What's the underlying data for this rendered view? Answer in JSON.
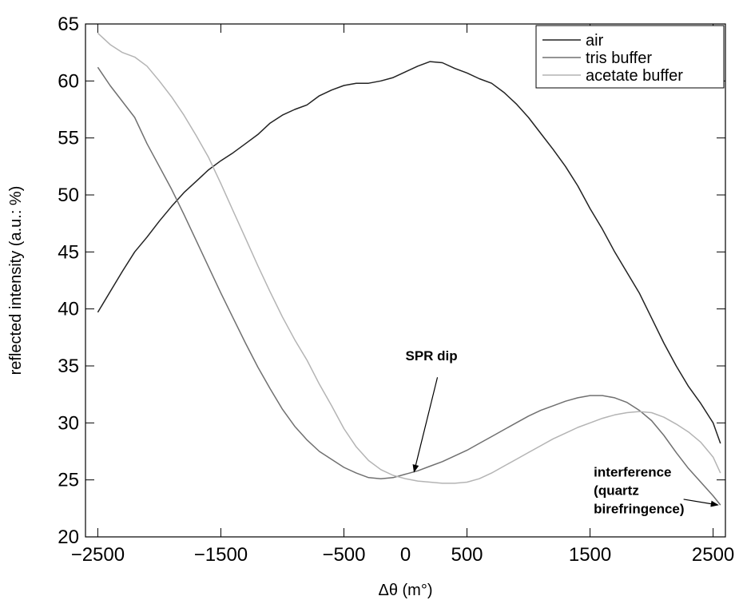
{
  "chart_data": {
    "type": "line",
    "title": "",
    "xlabel": "Δθ (m°)",
    "ylabel": "reflected intensity (a.u.: %)",
    "xlim": [
      -2600,
      2600
    ],
    "ylim": [
      20,
      65
    ],
    "xticks": [
      -2500,
      -1500,
      -500,
      500,
      1500,
      2500
    ],
    "xtick_labels": [
      "−2500",
      "−1500",
      "−500",
      "500",
      "1500",
      "2500"
    ],
    "xtick_labels_extra": [
      {
        "value": 0,
        "label": "0"
      }
    ],
    "yticks": [
      20,
      25,
      30,
      35,
      40,
      45,
      50,
      55,
      60,
      65
    ],
    "ytick_labels": [
      "20",
      "25",
      "30",
      "35",
      "40",
      "45",
      "50",
      "55",
      "60",
      "65"
    ],
    "grid": false,
    "legend_position": "top-right",
    "series": [
      {
        "name": "air",
        "color": "#222222",
        "x": [
          -2500,
          -2400,
          -2300,
          -2200,
          -2100,
          -2000,
          -1900,
          -1800,
          -1700,
          -1600,
          -1500,
          -1400,
          -1300,
          -1200,
          -1100,
          -1000,
          -900,
          -800,
          -700,
          -600,
          -500,
          -400,
          -300,
          -200,
          -100,
          0,
          100,
          200,
          300,
          400,
          500,
          600,
          700,
          800,
          900,
          1000,
          1100,
          1200,
          1300,
          1400,
          1500,
          1600,
          1700,
          1800,
          1900,
          2000,
          2100,
          2200,
          2300,
          2400,
          2500,
          2560
        ],
        "y": [
          39.7,
          41.5,
          43.3,
          45.0,
          46.3,
          47.7,
          49.0,
          50.2,
          51.2,
          52.2,
          53.0,
          53.7,
          54.5,
          55.3,
          56.3,
          57.0,
          57.5,
          57.9,
          58.7,
          59.2,
          59.6,
          59.8,
          59.8,
          60.0,
          60.3,
          60.8,
          61.3,
          61.7,
          61.6,
          61.1,
          60.7,
          60.2,
          59.8,
          59.0,
          58.0,
          56.8,
          55.4,
          54.0,
          52.5,
          50.8,
          48.8,
          47.0,
          45.0,
          43.2,
          41.4,
          39.2,
          37.0,
          35.0,
          33.2,
          31.7,
          30.0,
          28.2
        ]
      },
      {
        "name": "tris buffer",
        "color": "#707070",
        "x": [
          -2500,
          -2400,
          -2300,
          -2200,
          -2100,
          -2000,
          -1900,
          -1800,
          -1700,
          -1600,
          -1500,
          -1400,
          -1300,
          -1200,
          -1100,
          -1000,
          -900,
          -800,
          -700,
          -600,
          -500,
          -400,
          -300,
          -200,
          -100,
          0,
          100,
          200,
          300,
          400,
          500,
          600,
          700,
          800,
          900,
          1000,
          1100,
          1200,
          1300,
          1400,
          1500,
          1600,
          1700,
          1800,
          1900,
          2000,
          2100,
          2200,
          2300,
          2400,
          2500,
          2560
        ],
        "y": [
          61.2,
          59.6,
          58.2,
          56.8,
          54.5,
          52.5,
          50.5,
          48.3,
          46.0,
          43.7,
          41.4,
          39.2,
          37.0,
          34.9,
          33.0,
          31.2,
          29.7,
          28.5,
          27.5,
          26.8,
          26.1,
          25.6,
          25.2,
          25.1,
          25.2,
          25.5,
          25.8,
          26.2,
          26.6,
          27.1,
          27.6,
          28.2,
          28.8,
          29.4,
          30.0,
          30.6,
          31.1,
          31.5,
          31.9,
          32.2,
          32.4,
          32.4,
          32.2,
          31.8,
          31.1,
          30.2,
          28.9,
          27.4,
          26.0,
          24.8,
          23.6,
          22.8
        ]
      },
      {
        "name": "acetate buffer",
        "color": "#b4b4b4",
        "x": [
          -2500,
          -2400,
          -2300,
          -2200,
          -2100,
          -2000,
          -1900,
          -1800,
          -1700,
          -1600,
          -1500,
          -1400,
          -1300,
          -1200,
          -1100,
          -1000,
          -900,
          -800,
          -700,
          -600,
          -500,
          -400,
          -300,
          -200,
          -100,
          0,
          100,
          200,
          300,
          400,
          500,
          600,
          700,
          800,
          900,
          1000,
          1100,
          1200,
          1300,
          1400,
          1500,
          1600,
          1700,
          1800,
          1900,
          2000,
          2100,
          2200,
          2300,
          2400,
          2500,
          2560
        ],
        "y": [
          64.2,
          63.2,
          62.5,
          62.1,
          61.3,
          60.0,
          58.6,
          57.0,
          55.2,
          53.3,
          51.0,
          48.6,
          46.2,
          43.8,
          41.5,
          39.3,
          37.3,
          35.5,
          33.4,
          31.5,
          29.5,
          27.9,
          26.7,
          25.9,
          25.4,
          25.1,
          24.9,
          24.8,
          24.7,
          24.7,
          24.8,
          25.1,
          25.6,
          26.2,
          26.8,
          27.4,
          28.0,
          28.6,
          29.1,
          29.6,
          30.0,
          30.4,
          30.7,
          30.9,
          31.0,
          30.9,
          30.5,
          29.9,
          29.2,
          28.3,
          27.0,
          25.6
        ]
      }
    ],
    "annotations": [
      {
        "id": "spr-dip",
        "lines": [
          "SPR dip"
        ],
        "text_x": 0.0,
        "text_y": 35.5,
        "arrow_from": [
          260,
          34.0
        ],
        "arrow_to": [
          70,
          25.7
        ]
      },
      {
        "id": "interference",
        "lines": [
          "interference",
          "(quartz",
          "birefringence)"
        ],
        "text_x": 1530,
        "text_y": 25.3,
        "arrow_from": [
          2260,
          23.3
        ],
        "arrow_to": [
          2540,
          22.8
        ]
      }
    ]
  }
}
